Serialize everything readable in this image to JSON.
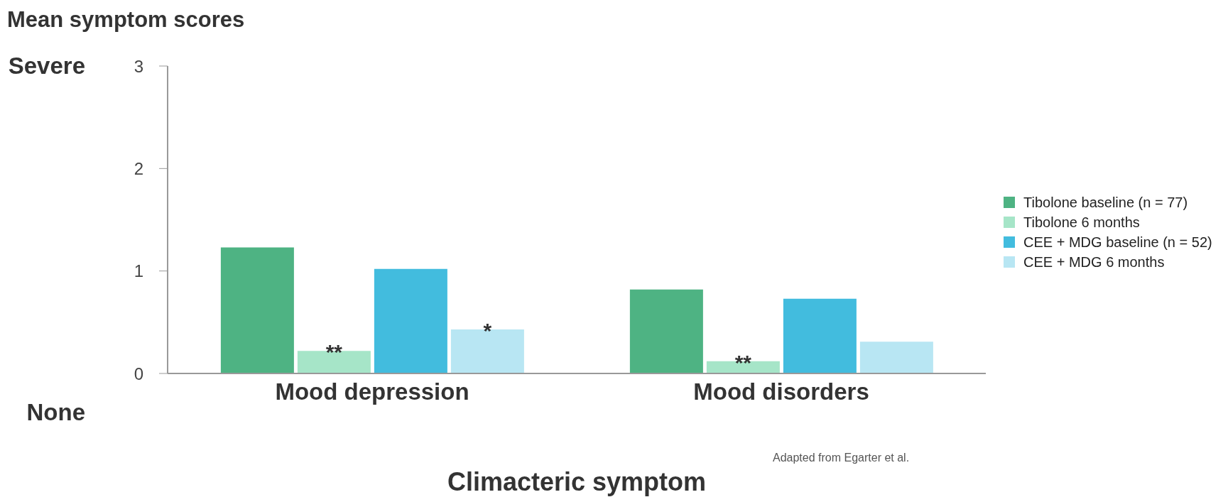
{
  "chart_data": {
    "type": "bar",
    "title": "Mean symptom scores",
    "xlabel": "Climacteric symptom",
    "categories": [
      "Mood depression",
      "Mood disorders"
    ],
    "series": [
      {
        "name": "Tibolone baseline (n = 77)",
        "color": "#4eb383",
        "values": [
          1.23,
          0.82
        ]
      },
      {
        "name": "Tibolone 6 months",
        "color": "#a6e5c8",
        "values": [
          0.22,
          0.12
        ],
        "value_labels": [
          "**",
          "**"
        ]
      },
      {
        "name": "CEE + MDG baseline (n = 52)",
        "color": "#42bcde",
        "values": [
          1.02,
          0.73
        ]
      },
      {
        "name": "CEE + MDG 6 months",
        "color": "#b8e6f3",
        "values": [
          0.43,
          0.31
        ],
        "value_labels": [
          "*",
          null
        ]
      }
    ],
    "ylim": [
      0,
      3
    ],
    "yticks": [
      0,
      1,
      2,
      3
    ],
    "grid": false,
    "legend": "right",
    "annotations": [
      "Severe",
      "None",
      "Adapted from Egarter et al."
    ]
  }
}
